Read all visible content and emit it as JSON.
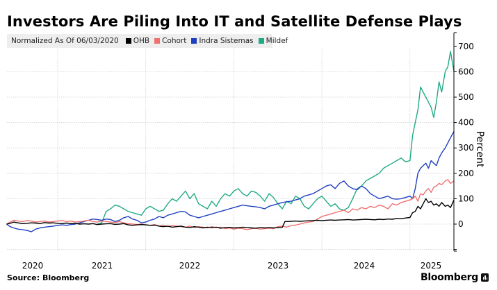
{
  "title": "Investors Are Piling Into IT and Satellite Defense Plays",
  "legend": {
    "note": "Normalized As Of 06/03/2020",
    "items": [
      {
        "name": "OHB",
        "color": "#000000"
      },
      {
        "name": "Cohort",
        "color": "#f07070"
      },
      {
        "name": "Indra Sistemas",
        "color": "#1f3fc0"
      },
      {
        "name": "Mildef",
        "color": "#1faa85"
      }
    ]
  },
  "footer": {
    "source": "Source: Bloomberg",
    "brand": "Bloomberg"
  },
  "chart_data": {
    "type": "line",
    "title": "Investors Are Piling Into IT and Satellite Defense Plays",
    "subtitle": "Normalized As Of 06/03/2020",
    "xlabel": "",
    "ylabel": "Percent",
    "x_ticks": [
      "2020",
      "2021",
      "2022",
      "2023",
      "2024",
      "2025"
    ],
    "y_ticks": [
      0,
      100,
      200,
      300,
      400,
      500,
      600,
      700
    ],
    "ylim": [
      -100,
      750
    ],
    "xlim": [
      2020.42,
      2025.55
    ],
    "grid": true,
    "y_axis_side": "right",
    "legend_position": "top-left",
    "series": [
      {
        "name": "OHB",
        "color": "#000000",
        "x": [
          2020.42,
          2020.46,
          2020.5,
          2020.55,
          2020.6,
          2020.65,
          2020.7,
          2020.75,
          2020.8,
          2020.85,
          2020.9,
          2020.95,
          2021.0,
          2021.05,
          2021.1,
          2021.15,
          2021.2,
          2021.25,
          2021.3,
          2021.35,
          2021.4,
          2021.45,
          2021.5,
          2021.55,
          2021.6,
          2021.65,
          2021.7,
          2021.75,
          2021.8,
          2021.85,
          2021.9,
          2021.95,
          2022.0,
          2022.05,
          2022.1,
          2022.15,
          2022.2,
          2022.25,
          2022.3,
          2022.35,
          2022.4,
          2022.45,
          2022.5,
          2022.55,
          2022.6,
          2022.65,
          2022.7,
          2022.75,
          2022.8,
          2022.85,
          2022.9,
          2022.95,
          2023.0,
          2023.05,
          2023.1,
          2023.15,
          2023.2,
          2023.25,
          2023.3,
          2023.35,
          2023.4,
          2023.45,
          2023.5,
          2023.55,
          2023.58,
          2023.6,
          2023.65,
          2023.7,
          2023.75,
          2023.8,
          2023.85,
          2023.9,
          2023.95,
          2024.0,
          2024.05,
          2024.1,
          2024.15,
          2024.2,
          2024.25,
          2024.3,
          2024.35,
          2024.4,
          2024.45,
          2024.5,
          2024.55,
          2024.6,
          2024.65,
          2024.7,
          2024.75,
          2024.8,
          2024.85,
          2024.9,
          2024.95,
          2025.0,
          2025.03,
          2025.06,
          2025.09,
          2025.12,
          2025.15,
          2025.18,
          2025.21,
          2025.24,
          2025.27,
          2025.3,
          2025.33,
          2025.36,
          2025.4,
          2025.43,
          2025.46,
          2025.5
        ],
        "y": [
          0,
          3,
          8,
          5,
          2,
          3,
          5,
          4,
          2,
          6,
          4,
          5,
          3,
          2,
          4,
          2,
          3,
          0,
          1,
          0,
          2,
          -2,
          0,
          1,
          2,
          -1,
          0,
          2,
          -3,
          -5,
          -3,
          -2,
          -3,
          -5,
          -4,
          -8,
          -10,
          -8,
          -12,
          -10,
          -8,
          -12,
          -14,
          -10,
          -12,
          -15,
          -12,
          -14,
          -12,
          -16,
          -14,
          -13,
          -15,
          -14,
          -12,
          -14,
          -15,
          -16,
          -14,
          -15,
          -14,
          -15,
          -14,
          -13,
          10,
          10,
          11,
          12,
          11,
          12,
          13,
          14,
          15,
          14,
          15,
          16,
          15,
          16,
          17,
          18,
          16,
          17,
          18,
          19,
          18,
          17,
          19,
          18,
          20,
          19,
          22,
          21,
          24,
          26,
          45,
          50,
          70,
          60,
          80,
          100,
          85,
          90,
          75,
          80,
          70,
          85,
          70,
          75,
          65,
          95
        ]
      },
      {
        "name": "Cohort",
        "color": "#f07070",
        "x": [
          2020.42,
          2020.46,
          2020.5,
          2020.55,
          2020.6,
          2020.65,
          2020.7,
          2020.75,
          2020.8,
          2020.85,
          2020.9,
          2020.95,
          2021.0,
          2021.05,
          2021.1,
          2021.15,
          2021.2,
          2021.25,
          2021.3,
          2021.35,
          2021.4,
          2021.45,
          2021.5,
          2021.55,
          2021.6,
          2021.65,
          2021.7,
          2021.75,
          2021.8,
          2021.85,
          2021.9,
          2021.95,
          2022.0,
          2022.05,
          2022.1,
          2022.15,
          2022.2,
          2022.25,
          2022.3,
          2022.35,
          2022.4,
          2022.45,
          2022.5,
          2022.55,
          2022.6,
          2022.65,
          2022.7,
          2022.75,
          2022.8,
          2022.85,
          2022.9,
          2022.95,
          2023.0,
          2023.05,
          2023.1,
          2023.15,
          2023.2,
          2023.25,
          2023.3,
          2023.35,
          2023.4,
          2023.45,
          2023.5,
          2023.55,
          2023.6,
          2023.65,
          2023.7,
          2023.75,
          2023.8,
          2023.85,
          2023.9,
          2023.95,
          2024.0,
          2024.05,
          2024.1,
          2024.15,
          2024.2,
          2024.25,
          2024.3,
          2024.35,
          2024.4,
          2024.45,
          2024.5,
          2024.55,
          2024.6,
          2024.65,
          2024.7,
          2024.75,
          2024.8,
          2024.85,
          2024.9,
          2024.95,
          2025.0,
          2025.03,
          2025.06,
          2025.09,
          2025.12,
          2025.15,
          2025.18,
          2025.21,
          2025.24,
          2025.27,
          2025.3,
          2025.33,
          2025.36,
          2025.4,
          2025.43,
          2025.46,
          2025.5
        ],
        "y": [
          0,
          8,
          15,
          12,
          10,
          14,
          12,
          8,
          10,
          12,
          8,
          10,
          12,
          14,
          10,
          12,
          8,
          10,
          12,
          15,
          10,
          8,
          12,
          10,
          8,
          6,
          10,
          5,
          2,
          0,
          -2,
          0,
          -3,
          -5,
          -2,
          -8,
          -5,
          -10,
          -6,
          -8,
          -10,
          -12,
          -8,
          -14,
          -10,
          -12,
          -15,
          -10,
          -14,
          -12,
          -18,
          -15,
          -20,
          -16,
          -18,
          -22,
          -18,
          -16,
          -20,
          -18,
          -16,
          -18,
          -10,
          -8,
          -12,
          -6,
          -4,
          0,
          5,
          8,
          10,
          20,
          30,
          35,
          40,
          45,
          50,
          55,
          45,
          60,
          55,
          65,
          60,
          70,
          65,
          75,
          70,
          60,
          80,
          75,
          85,
          90,
          95,
          100,
          110,
          90,
          120,
          115,
          130,
          140,
          125,
          145,
          150,
          160,
          155,
          170,
          175,
          160,
          170
        ]
      },
      {
        "name": "Indra Sistemas",
        "color": "#1f3fc0",
        "x": [
          2020.42,
          2020.46,
          2020.5,
          2020.55,
          2020.6,
          2020.65,
          2020.7,
          2020.75,
          2020.8,
          2020.85,
          2020.9,
          2020.95,
          2021.0,
          2021.05,
          2021.1,
          2021.15,
          2021.2,
          2021.25,
          2021.3,
          2021.35,
          2021.4,
          2021.45,
          2021.5,
          2021.55,
          2021.6,
          2021.65,
          2021.7,
          2021.75,
          2021.8,
          2021.85,
          2021.9,
          2021.95,
          2022.0,
          2022.05,
          2022.1,
          2022.15,
          2022.2,
          2022.25,
          2022.3,
          2022.35,
          2022.4,
          2022.45,
          2022.5,
          2022.55,
          2022.6,
          2022.65,
          2022.7,
          2022.75,
          2022.8,
          2022.85,
          2022.9,
          2022.95,
          2023.0,
          2023.05,
          2023.1,
          2023.15,
          2023.2,
          2023.25,
          2023.3,
          2023.35,
          2023.4,
          2023.45,
          2023.5,
          2023.55,
          2023.6,
          2023.65,
          2023.7,
          2023.75,
          2023.8,
          2023.85,
          2023.9,
          2023.95,
          2024.0,
          2024.05,
          2024.1,
          2024.15,
          2024.2,
          2024.25,
          2024.3,
          2024.35,
          2024.4,
          2024.45,
          2024.5,
          2024.55,
          2024.6,
          2024.65,
          2024.7,
          2024.75,
          2024.8,
          2024.85,
          2024.9,
          2024.95,
          2025.0,
          2025.03,
          2025.06,
          2025.09,
          2025.12,
          2025.15,
          2025.18,
          2025.21,
          2025.24,
          2025.27,
          2025.3,
          2025.33,
          2025.36,
          2025.4,
          2025.43,
          2025.46,
          2025.5
        ],
        "y": [
          0,
          -10,
          -15,
          -20,
          -22,
          -25,
          -30,
          -20,
          -15,
          -12,
          -10,
          -8,
          -5,
          -3,
          -5,
          -2,
          0,
          5,
          10,
          15,
          20,
          18,
          15,
          20,
          18,
          10,
          15,
          25,
          30,
          20,
          15,
          5,
          8,
          15,
          20,
          30,
          25,
          35,
          40,
          45,
          50,
          48,
          35,
          30,
          25,
          30,
          35,
          40,
          45,
          50,
          55,
          60,
          65,
          70,
          75,
          72,
          70,
          68,
          65,
          60,
          70,
          75,
          80,
          85,
          88,
          90,
          95,
          100,
          110,
          115,
          120,
          130,
          140,
          150,
          155,
          140,
          160,
          170,
          150,
          140,
          135,
          150,
          140,
          120,
          110,
          100,
          105,
          110,
          100,
          98,
          100,
          105,
          110,
          100,
          140,
          200,
          220,
          230,
          240,
          220,
          250,
          240,
          230,
          260,
          280,
          300,
          320,
          340,
          365
        ]
      },
      {
        "name": "Mildef",
        "color": "#1faa85",
        "x": [
          2021.45,
          2021.5,
          2021.55,
          2021.6,
          2021.65,
          2021.7,
          2021.75,
          2021.8,
          2021.85,
          2021.9,
          2021.95,
          2022.0,
          2022.05,
          2022.1,
          2022.15,
          2022.2,
          2022.25,
          2022.3,
          2022.35,
          2022.4,
          2022.45,
          2022.5,
          2022.55,
          2022.6,
          2022.65,
          2022.7,
          2022.75,
          2022.8,
          2022.85,
          2022.9,
          2022.95,
          2023.0,
          2023.05,
          2023.1,
          2023.15,
          2023.2,
          2023.25,
          2023.3,
          2023.35,
          2023.4,
          2023.45,
          2023.5,
          2023.55,
          2023.6,
          2023.65,
          2023.7,
          2023.75,
          2023.8,
          2023.85,
          2023.9,
          2023.95,
          2024.0,
          2024.05,
          2024.1,
          2024.15,
          2024.2,
          2024.25,
          2024.3,
          2024.35,
          2024.4,
          2024.45,
          2024.5,
          2024.55,
          2024.6,
          2024.65,
          2024.7,
          2024.75,
          2024.8,
          2024.85,
          2024.9,
          2024.95,
          2025.0,
          2025.03,
          2025.06,
          2025.09,
          2025.12,
          2025.15,
          2025.18,
          2025.21,
          2025.24,
          2025.27,
          2025.3,
          2025.33,
          2025.36,
          2025.4,
          2025.43,
          2025.46,
          2025.5
        ],
        "y": [
          0,
          5,
          50,
          60,
          75,
          70,
          60,
          50,
          45,
          40,
          35,
          60,
          70,
          60,
          50,
          55,
          80,
          100,
          90,
          110,
          130,
          100,
          120,
          80,
          70,
          60,
          90,
          70,
          100,
          120,
          110,
          130,
          140,
          120,
          110,
          130,
          125,
          110,
          90,
          120,
          105,
          80,
          60,
          90,
          80,
          110,
          100,
          70,
          60,
          80,
          100,
          110,
          90,
          70,
          80,
          60,
          55,
          65,
          100,
          140,
          150,
          170,
          180,
          190,
          200,
          220,
          230,
          240,
          250,
          260,
          245,
          250,
          350,
          400,
          450,
          540,
          520,
          500,
          480,
          460,
          420,
          480,
          560,
          520,
          600,
          620,
          680,
          600
        ]
      }
    ]
  }
}
